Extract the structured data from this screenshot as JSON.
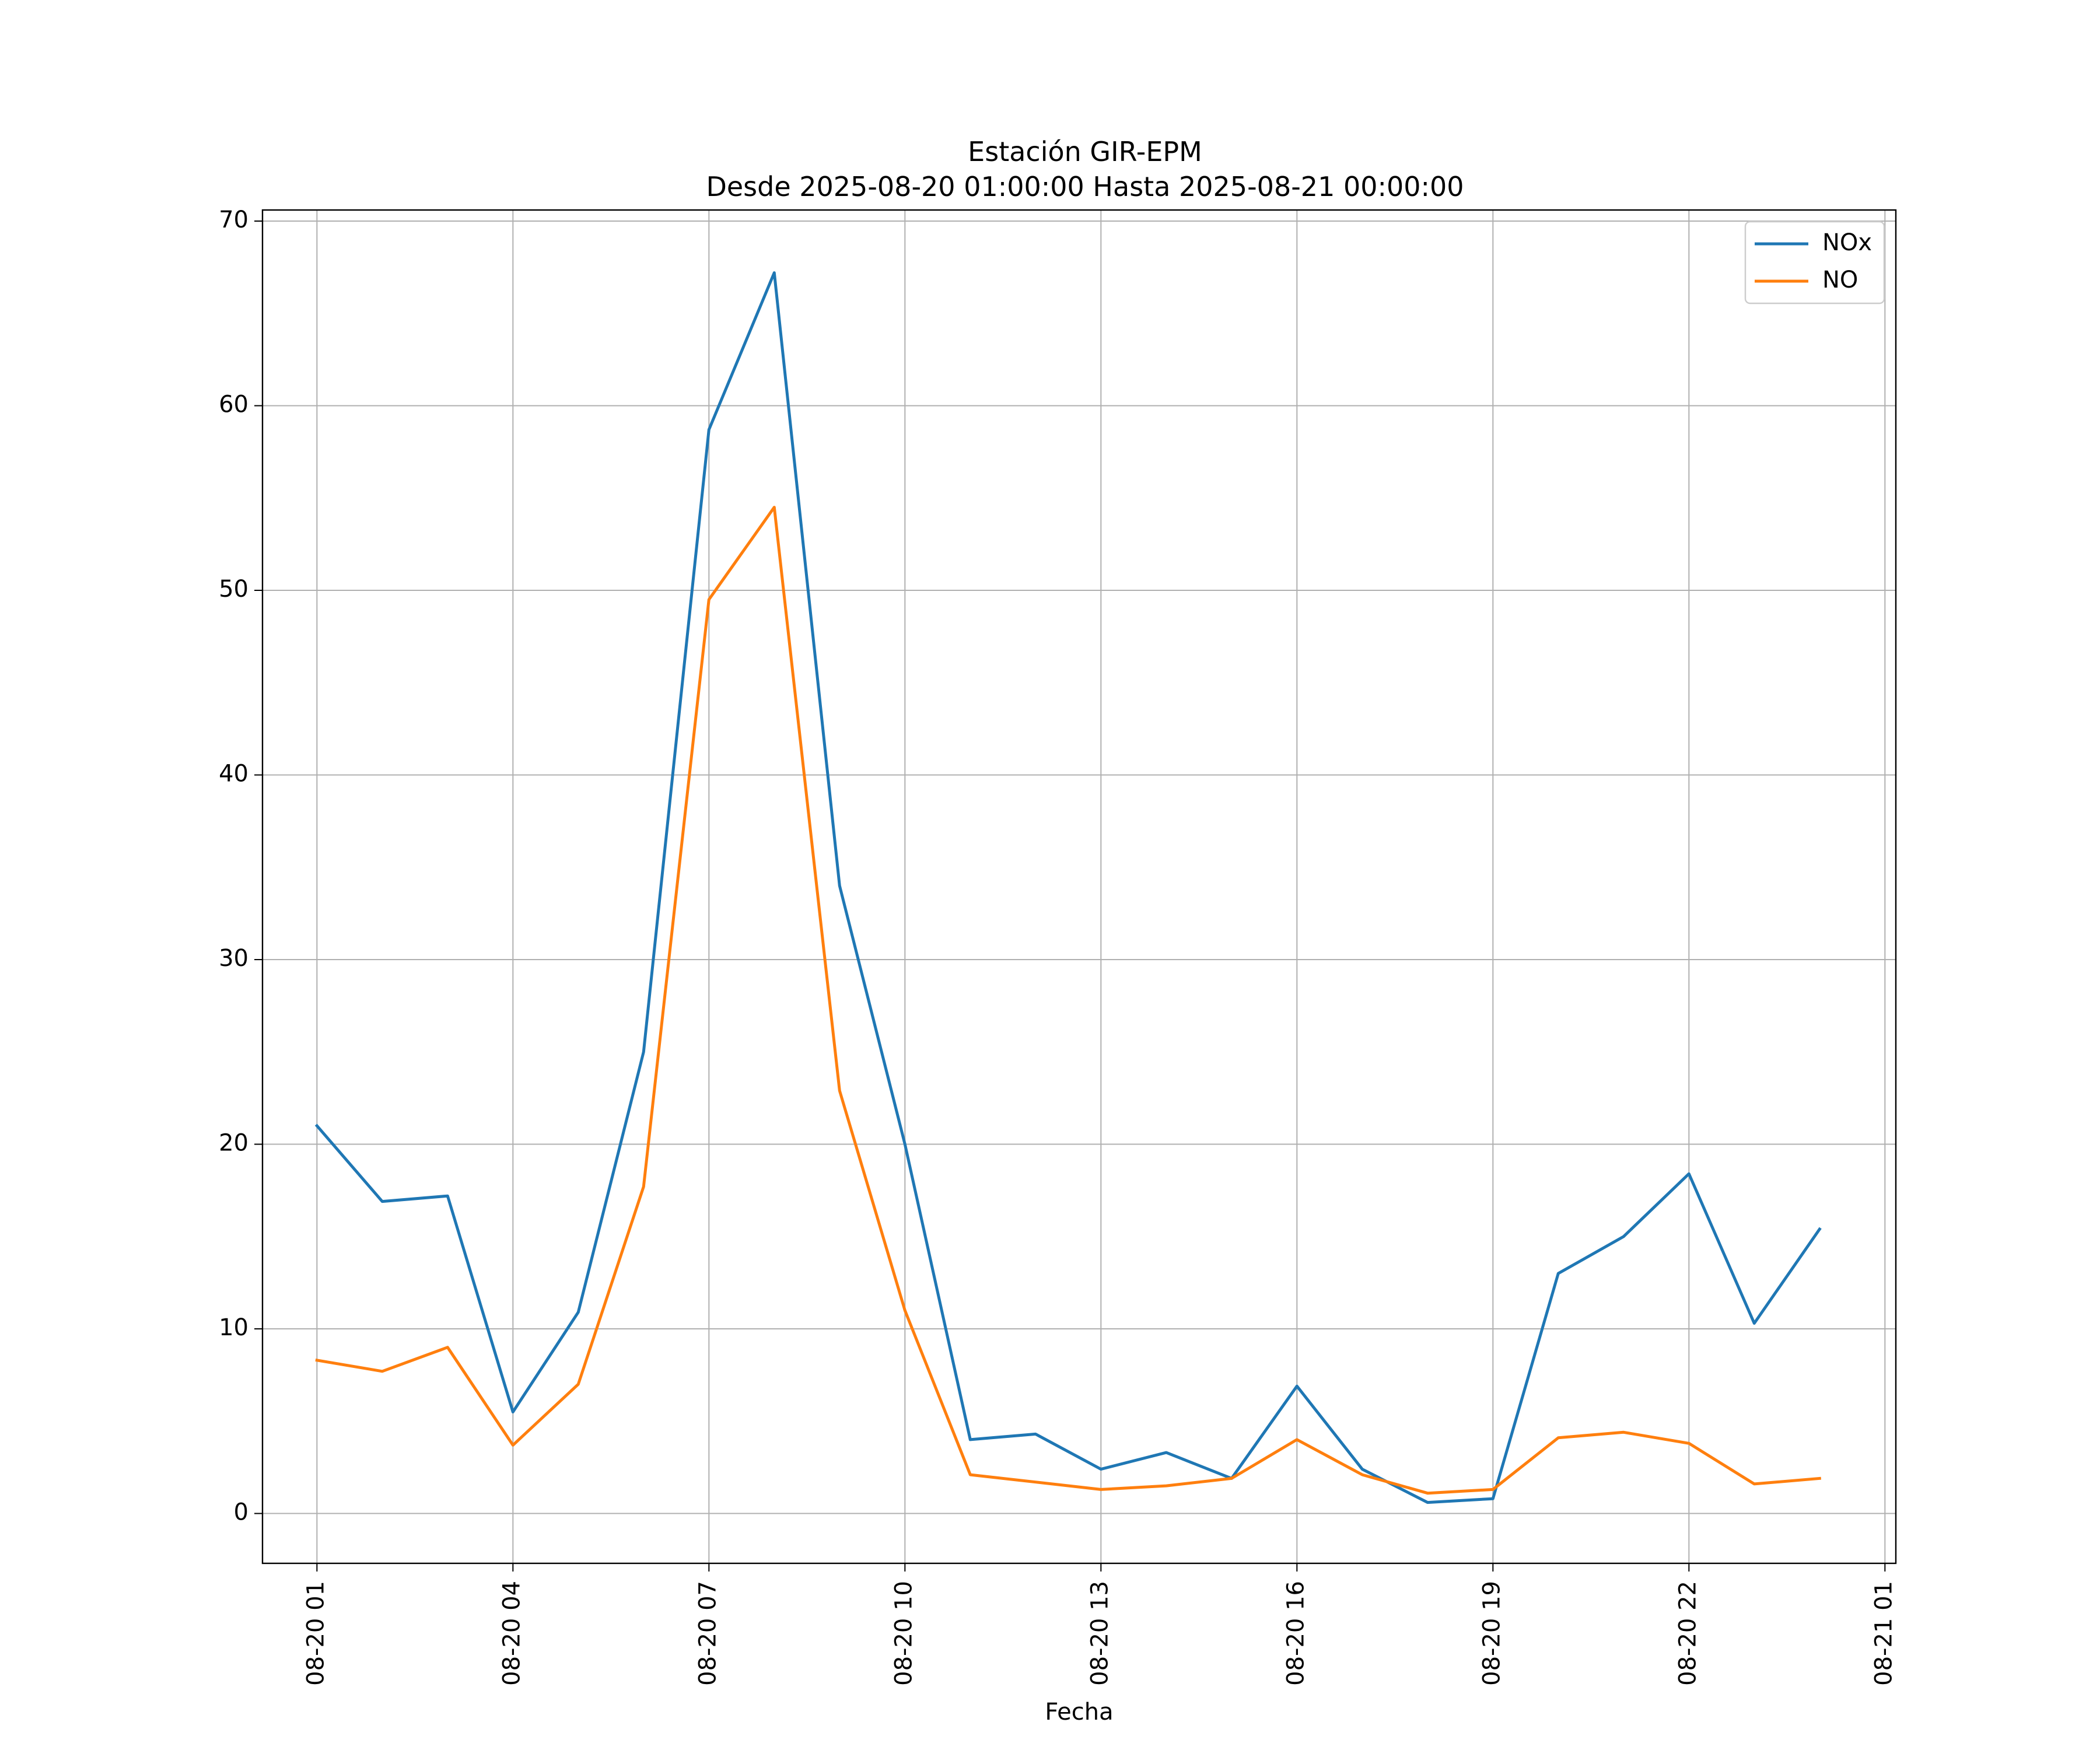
{
  "chart_data": {
    "type": "line",
    "title": "Estación GIR-EPM",
    "subtitle": "Desde 2025-08-20 01:00:00 Hasta 2025-08-21 00:00:00",
    "xlabel": "Fecha",
    "ylabel": "",
    "x": [
      "2025-08-20 01:00",
      "2025-08-20 02:00",
      "2025-08-20 03:00",
      "2025-08-20 04:00",
      "2025-08-20 05:00",
      "2025-08-20 06:00",
      "2025-08-20 07:00",
      "2025-08-20 08:00",
      "2025-08-20 09:00",
      "2025-08-20 10:00",
      "2025-08-20 11:00",
      "2025-08-20 12:00",
      "2025-08-20 13:00",
      "2025-08-20 14:00",
      "2025-08-20 15:00",
      "2025-08-20 16:00",
      "2025-08-20 17:00",
      "2025-08-20 18:00",
      "2025-08-20 19:00",
      "2025-08-20 20:00",
      "2025-08-20 21:00",
      "2025-08-20 22:00",
      "2025-08-20 23:00",
      "2025-08-21 00:00"
    ],
    "series": [
      {
        "name": "NOx",
        "color": "#1f77b4",
        "values": [
          21.0,
          16.9,
          17.2,
          5.5,
          10.9,
          25.0,
          58.7,
          67.2,
          34.0,
          20.0,
          4.0,
          4.3,
          2.4,
          3.3,
          1.9,
          6.9,
          2.4,
          0.6,
          0.8,
          13.0,
          15.0,
          18.4,
          10.3,
          15.4
        ]
      },
      {
        "name": "NO",
        "color": "#ff7f0e",
        "values": [
          8.3,
          7.7,
          9.0,
          3.7,
          7.0,
          17.7,
          49.5,
          54.5,
          22.9,
          11.0,
          2.1,
          1.7,
          1.3,
          1.5,
          1.9,
          4.0,
          2.1,
          1.1,
          1.3,
          4.1,
          4.4,
          3.8,
          1.6,
          1.9
        ]
      }
    ],
    "xticks": [
      "08-20 01",
      "08-20 04",
      "08-20 07",
      "08-20 10",
      "08-20 13",
      "08-20 16",
      "08-20 19",
      "08-20 22",
      "08-21 01"
    ],
    "yticks": [
      0,
      10,
      20,
      30,
      40,
      50,
      60,
      70
    ],
    "ylim": [
      -2.7,
      70.6
    ],
    "xlim": [
      "2025-08-20 00:10",
      "2025-08-21 01:10"
    ],
    "grid": true,
    "legend": "top-right"
  }
}
